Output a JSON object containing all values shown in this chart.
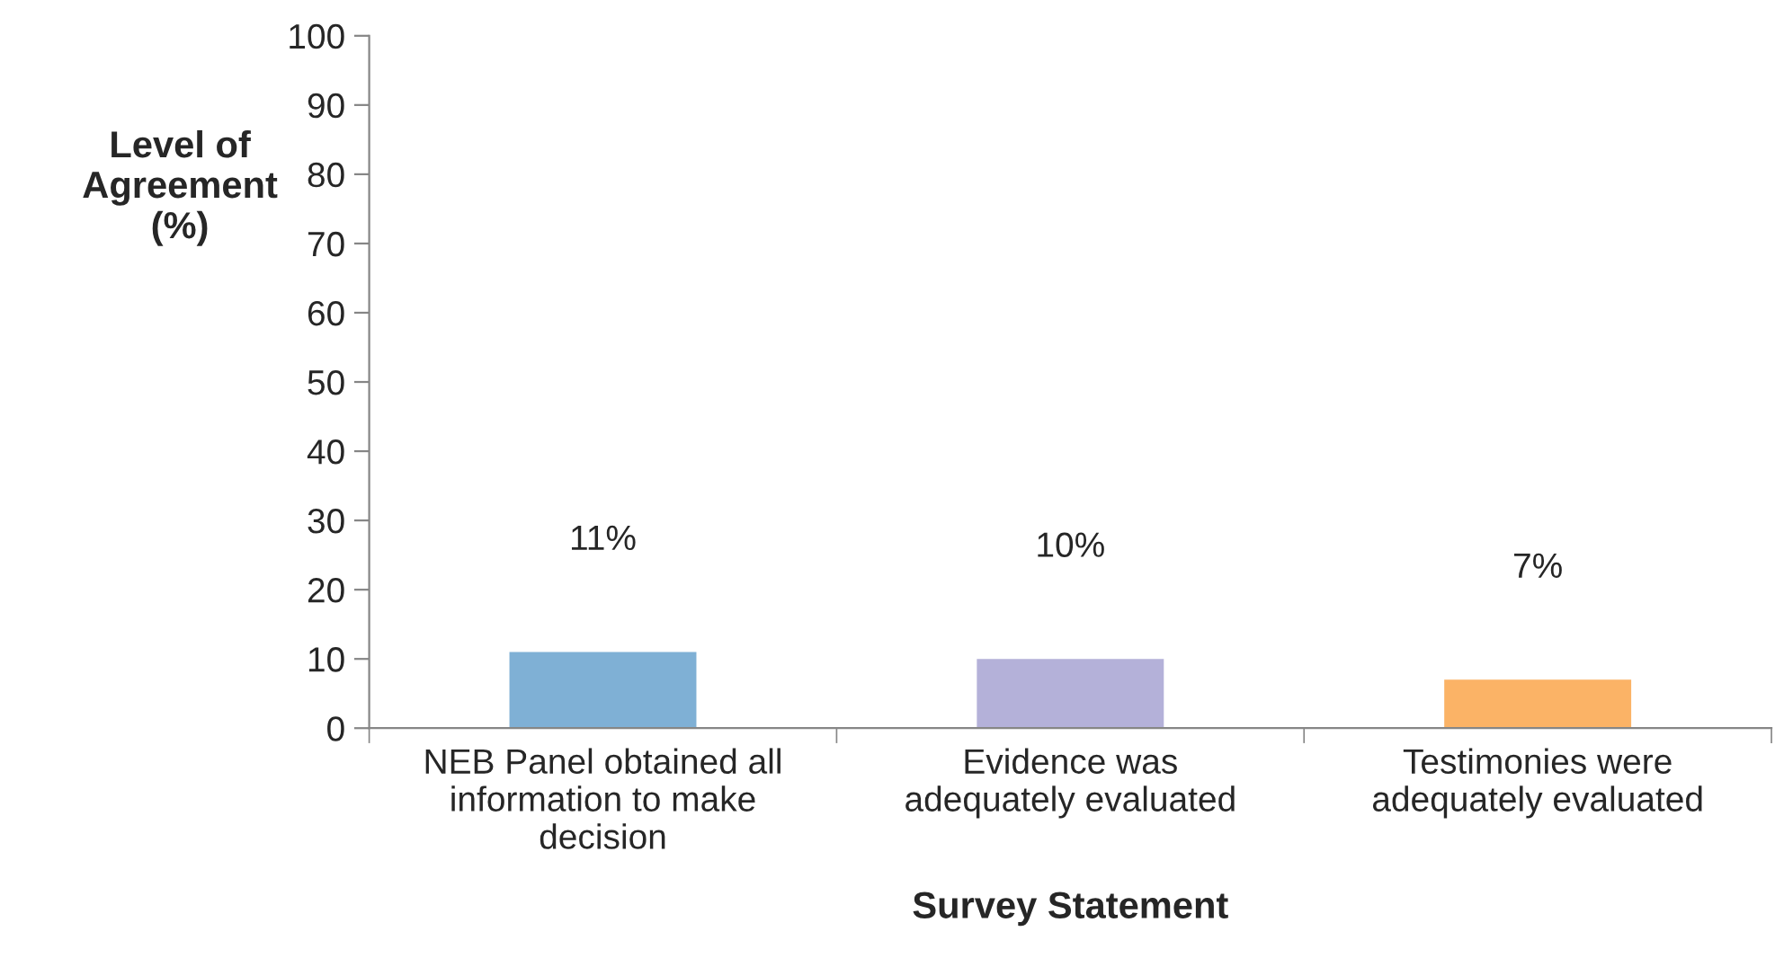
{
  "chart_data": {
    "type": "bar",
    "categories": [
      "NEB Panel obtained all\ninformation to make\ndecision",
      "Evidence was\nadequately evaluated",
      "Testimonies were\nadequately evaluated"
    ],
    "values": [
      11,
      10,
      7
    ],
    "colors": [
      "#7fb0d5",
      "#b4b1d9",
      "#fbb366"
    ],
    "value_labels": [
      "11%",
      "10%",
      "7%"
    ],
    "xlabel": "Survey Statement",
    "ylabel": "Level of\nAgreement\n(%)",
    "ylim": [
      0,
      100
    ],
    "yticks": [
      0,
      10,
      20,
      30,
      40,
      50,
      60,
      70,
      80,
      90,
      100
    ],
    "grid": false,
    "legend": false
  }
}
